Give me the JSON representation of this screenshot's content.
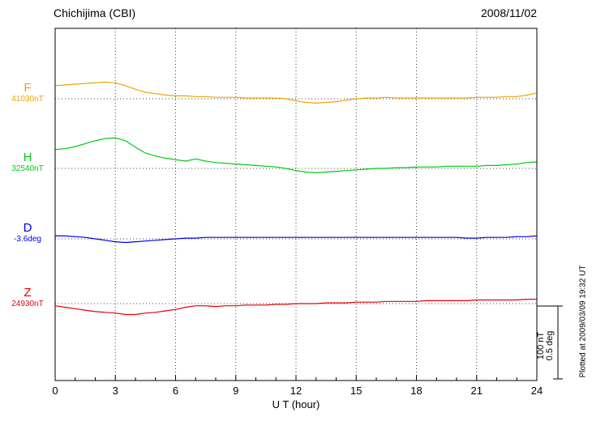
{
  "header": {
    "title": "Chichijima (CBI)",
    "date": "2008/11/02"
  },
  "footer": {
    "xlabel": "U T (hour)"
  },
  "scale": {
    "line1": "100 nT",
    "line2": "0.5 deg",
    "plotted_at": "Plotted at 2009/03/09 19:32 UT"
  },
  "colors": {
    "grid": "#444444",
    "axis": "#000000"
  },
  "chart_data": {
    "type": "line",
    "title": "Chichijima (CBI) magnetogram 2008/11/02",
    "xlabel": "U T (hour)",
    "x_range": [
      0,
      24
    ],
    "x_ticks": [
      0,
      3,
      6,
      9,
      12,
      15,
      18,
      21,
      24
    ],
    "grid": "dotted vertical at 3-hour intervals, dotted horizontal baseline per trace",
    "scale_bar": {
      "nT": 100,
      "deg": 0.5
    },
    "x": [
      0,
      0.5,
      1,
      1.5,
      2,
      2.5,
      3,
      3.5,
      4,
      4.5,
      5,
      5.5,
      6,
      6.5,
      7,
      7.5,
      8,
      8.5,
      9,
      9.5,
      10,
      10.5,
      11,
      11.5,
      12,
      12.5,
      13,
      13.5,
      14,
      14.5,
      15,
      15.5,
      16,
      16.5,
      17,
      17.5,
      18,
      18.5,
      19,
      19.5,
      20,
      20.5,
      21,
      21.5,
      22,
      22.5,
      23,
      23.5,
      24
    ],
    "series": [
      {
        "name": "F",
        "baseline_label": "41030nT",
        "baseline_value": 41030,
        "unit": "nT",
        "to_nT": 1,
        "color": "#f0a400",
        "offsets": [
          18,
          19,
          20,
          21,
          22,
          23,
          22,
          18,
          13,
          9,
          7,
          5,
          4,
          4,
          3,
          3,
          2,
          2,
          2,
          1,
          1,
          1,
          1,
          0,
          -3,
          -5,
          -6,
          -5,
          -4,
          -2,
          0,
          1,
          1,
          2,
          1,
          1,
          1,
          1,
          1,
          1,
          1,
          1,
          2,
          2,
          2,
          3,
          3,
          5,
          8
        ]
      },
      {
        "name": "H",
        "baseline_label": "32540nT",
        "baseline_value": 32540,
        "unit": "nT",
        "to_nT": 1,
        "color": "#00c814",
        "offsets": [
          26,
          27,
          30,
          34,
          38,
          41,
          42,
          38,
          29,
          21,
          17,
          14,
          12,
          10,
          13,
          10,
          8,
          7,
          6,
          5,
          4,
          3,
          2,
          0,
          -3,
          -5,
          -6,
          -5,
          -4,
          -3,
          -2,
          -1,
          0,
          0,
          1,
          1,
          2,
          2,
          2,
          3,
          3,
          3,
          3,
          4,
          4,
          5,
          6,
          8,
          9
        ]
      },
      {
        "name": "D",
        "baseline_label": "-3.6deg",
        "baseline_value": -3.6,
        "unit": "deg",
        "to_nT": 200,
        "color": "#0000ee",
        "offsets": [
          0.02,
          0.02,
          0.015,
          0.01,
          0,
          -0.01,
          -0.02,
          -0.025,
          -0.02,
          -0.015,
          -0.01,
          -0.005,
          0,
          0.005,
          0.005,
          0.01,
          0.01,
          0.01,
          0.01,
          0.01,
          0.01,
          0.01,
          0.01,
          0.01,
          0.01,
          0.01,
          0.01,
          0.01,
          0.01,
          0.01,
          0.01,
          0.01,
          0.01,
          0.01,
          0.01,
          0.01,
          0.01,
          0.01,
          0.01,
          0.01,
          0.01,
          0.005,
          0.005,
          0.01,
          0.01,
          0.01,
          0.015,
          0.015,
          0.02
        ]
      },
      {
        "name": "Z",
        "baseline_label": "24930nT",
        "baseline_value": 24930,
        "unit": "nT",
        "to_nT": 1,
        "color": "#e80000",
        "offsets": [
          -3,
          -5,
          -7,
          -9,
          -11,
          -12,
          -13,
          -15,
          -15,
          -13,
          -12,
          -10,
          -8,
          -5,
          -3,
          -3,
          -4,
          -3,
          -3,
          -2,
          -2,
          -2,
          -1,
          -1,
          0,
          0,
          0,
          1,
          1,
          1,
          2,
          2,
          2,
          3,
          3,
          3,
          3,
          4,
          4,
          4,
          4,
          4,
          5,
          5,
          5,
          5,
          5,
          6,
          6
        ]
      }
    ]
  }
}
